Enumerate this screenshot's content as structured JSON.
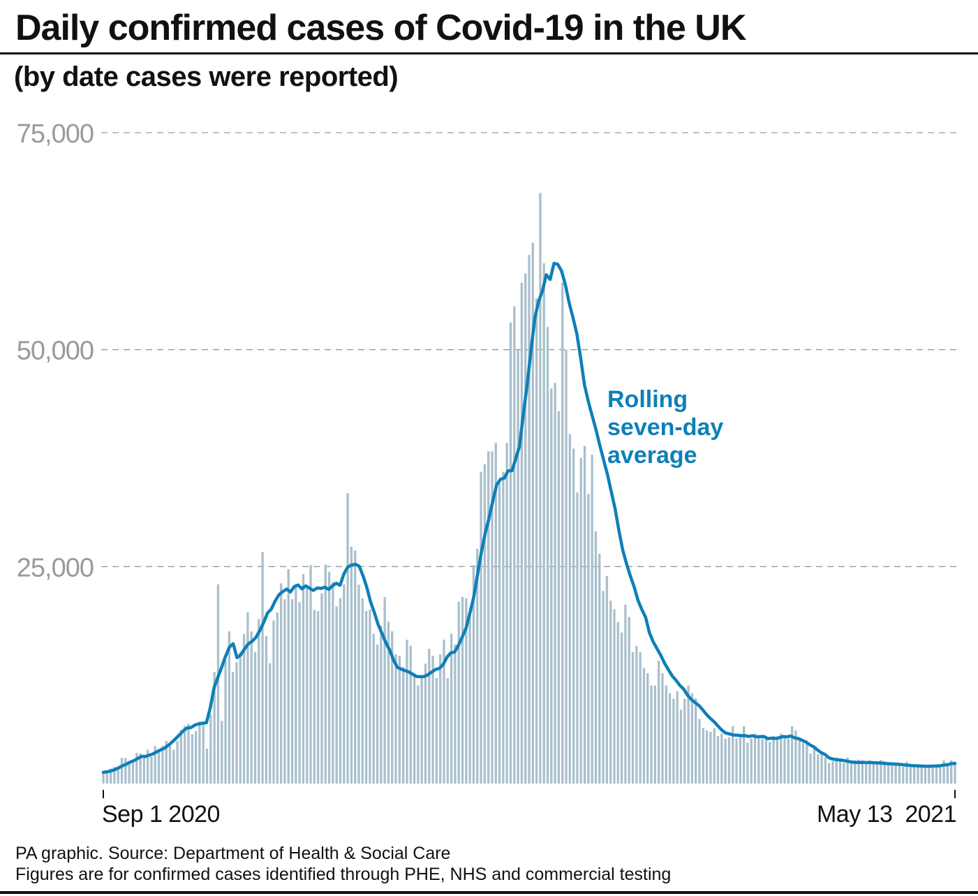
{
  "header": {
    "title": "Daily confirmed cases of Covid-19 in the UK",
    "subtitle": "(by date cases were reported)"
  },
  "footer": {
    "source": "PA graphic. Source: Department of Health & Social Care",
    "note": "Figures are for confirmed cases identified through PHE, NHS and commercial testing"
  },
  "colors": {
    "bar": "#a9bfcc",
    "line": "#0e7fb8",
    "grid": "#9a9a9a",
    "tick_label": "#9a9a9a",
    "text": "#111111"
  },
  "chart_data": {
    "type": "bar",
    "title": "Daily confirmed cases of Covid-19 in the UK",
    "subtitle": "(by date cases were reported)",
    "xlabel": "",
    "ylabel": "",
    "ylim": [
      0,
      75000
    ],
    "y_ticks": [
      25000,
      50000,
      75000
    ],
    "y_tick_labels": [
      "25,000",
      "50,000",
      "75,000"
    ],
    "x_tick_labels": [
      "Sep 1 2020",
      "May 13  2021"
    ],
    "x_range": [
      "2020-09-01",
      "2021-05-13"
    ],
    "grid": "horizontal dashed",
    "legend": "annotation near peak, right side",
    "annotation": {
      "lines": [
        "Rolling",
        "seven-day",
        "average"
      ],
      "series": "Rolling seven-day average"
    },
    "series": [
      {
        "name": "Daily confirmed cases",
        "type": "bar",
        "values": [
          1295,
          1508,
          1735,
          1940,
          1813,
          2988,
          2948,
          2460,
          2659,
          3539,
          3497,
          3330,
          3899,
          3105,
          4322,
          3991,
          4368,
          4926,
          4422,
          3899,
          4926,
          6178,
          6634,
          6874,
          5693,
          6042,
          7143,
          7108,
          4044,
          7951,
          12872,
          22961,
          7223,
          14162,
          17540,
          12872,
          13972,
          15166,
          17234,
          19724,
          17540,
          15166,
          18980,
          26688,
          16982,
          13864,
          18804,
          19724,
          23065,
          21242,
          24701,
          21242,
          22950,
          20890,
          24141,
          22885,
          25177,
          20018,
          19875,
          21915,
          25242,
          24405,
          23254,
          20412,
          21363,
          22950,
          33470,
          27301,
          26860,
          22915,
          21350,
          19875,
          20051,
          17272,
          16022,
          18213,
          21502,
          18662,
          17555,
          14879,
          14718,
          13430,
          16578,
          15871,
          12330,
          11299,
          12282,
          13813,
          15539,
          14718,
          12155,
          14879,
          16578,
          12155,
          17272,
          16022,
          20964,
          21502,
          21363,
          19875,
          25161,
          27052,
          35928,
          36804,
          38282,
          38282,
          39237,
          34693,
          35928,
          39237,
          53135,
          54990,
          49992,
          57725,
          58784,
          60916,
          62322,
          55892,
          68053,
          59937,
          52618,
          45533,
          46169,
          42916,
          57725,
          50002,
          40261,
          38598,
          33552,
          37535,
          38905,
          33355,
          37892,
          29079,
          26476,
          22195,
          23907,
          21088,
          20089,
          18607,
          17412,
          20634,
          19202,
          15144,
          15845,
          15144,
          13308,
          12718,
          11298,
          11298,
          14143,
          12718,
          11298,
          10413,
          9765,
          10629,
          8523,
          9765,
          11298,
          10406,
          9834,
          7434,
          6391,
          6114,
          5947,
          6391,
          5455,
          5766,
          5177,
          5322,
          6609,
          5177,
          5322,
          6609,
          4715,
          5177,
          5766,
          5455,
          5177,
          5455,
          4802,
          5455,
          5322,
          5766,
          5322,
          5177,
          6609,
          6114,
          5322,
          4715,
          4802,
          3468,
          4040,
          3402,
          3568,
          3006,
          2379,
          2589,
          3006,
          2678,
          2379,
          3006,
          2472,
          2678,
          2762,
          2678,
          2434,
          2678,
          2524,
          2396,
          2729,
          2589,
          2472,
          2166,
          2434,
          2057,
          1946,
          2524,
          2091,
          2166,
          1946,
          1882,
          2166,
          1882,
          1946,
          2091,
          2184,
          2678,
          2091,
          2678,
          2524
        ]
      },
      {
        "name": "Rolling seven-day average",
        "type": "line",
        "values": [
          1295,
          1360,
          1450,
          1600,
          1810,
          2040,
          2230,
          2470,
          2640,
          2880,
          3130,
          3120,
          3270,
          3420,
          3660,
          3890,
          4080,
          4400,
          4780,
          5200,
          5640,
          6110,
          6420,
          6460,
          6750,
          6880,
          6950,
          7010,
          8720,
          11050,
          12250,
          13420,
          14660,
          15720,
          16120,
          14510,
          14850,
          15520,
          16120,
          16410,
          16860,
          17650,
          18580,
          19640,
          20110,
          21040,
          21770,
          22120,
          22400,
          22080,
          22700,
          22880,
          22440,
          22780,
          22520,
          22260,
          22540,
          22480,
          22640,
          22380,
          22780,
          23090,
          22850,
          24170,
          24950,
          25180,
          25280,
          25050,
          23960,
          22600,
          20900,
          19670,
          18270,
          17260,
          16220,
          15380,
          14230,
          13380,
          13190,
          13020,
          12850,
          12610,
          12340,
          12320,
          12340,
          12540,
          12860,
          13150,
          13270,
          13740,
          14570,
          15060,
          15170,
          15940,
          16910,
          17930,
          19670,
          21530,
          24090,
          26680,
          28860,
          30600,
          32580,
          34440,
          35060,
          35200,
          36040,
          36050,
          37450,
          38890,
          42660,
          46050,
          49940,
          53680,
          55580,
          56780,
          58630,
          58090,
          59940,
          59840,
          59060,
          57450,
          55360,
          53670,
          51800,
          48980,
          45930,
          44030,
          42380,
          40800,
          38990,
          37280,
          35620,
          33650,
          31680,
          29160,
          26930,
          25340,
          23910,
          22670,
          21120,
          20060,
          19150,
          17380,
          16320,
          15530,
          14760,
          13840,
          13090,
          12380,
          11880,
          11300,
          10860,
          10180,
          9670,
          9330,
          8970,
          8470,
          7930,
          7480,
          7100,
          6600,
          6140,
          5820,
          5710,
          5590,
          5580,
          5510,
          5530,
          5420,
          5510,
          5390,
          5410,
          5420,
          5180,
          5230,
          5210,
          5280,
          5420,
          5380,
          5480,
          5270,
          5180,
          4980,
          4800,
          4470,
          4230,
          3880,
          3560,
          3350,
          2960,
          2830,
          2750,
          2710,
          2650,
          2560,
          2480,
          2440,
          2440,
          2440,
          2420,
          2420,
          2400,
          2380,
          2340,
          2300,
          2280,
          2250,
          2230,
          2200,
          2130,
          2110,
          2060,
          2040,
          2020,
          2000,
          1990,
          2010,
          2020,
          2040,
          2130,
          2170,
          2290,
          2320
        ]
      }
    ]
  }
}
